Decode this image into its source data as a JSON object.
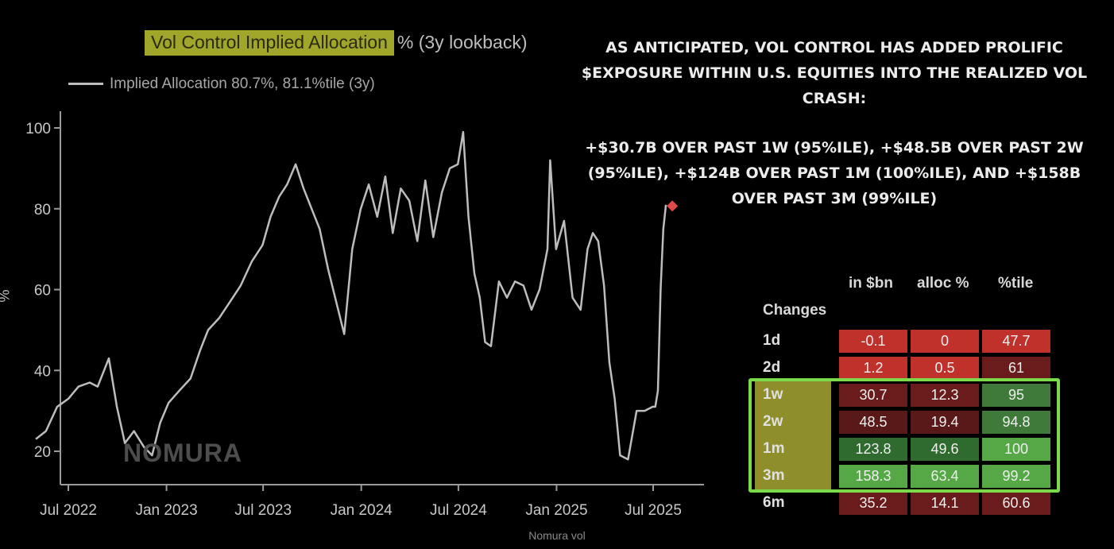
{
  "chart_data": {
    "type": "line",
    "title_highlight": "Vol Control Implied Allocation",
    "title_rest": "% (3y lookback)",
    "legend": "Implied Allocation 80.7%, 81.1%tile (3y)",
    "ylabel": "%",
    "ylim": [
      15,
      103
    ],
    "yticks": [
      20,
      40,
      60,
      80,
      100
    ],
    "xticks": [
      "Jul 2022",
      "Jan 2023",
      "Jul 2023",
      "Jan 2024",
      "Jul 2024",
      "Jan 2025",
      "Jul 2025"
    ],
    "series": [
      {
        "name": "Implied Allocation",
        "x": [
          "2022-05-01",
          "2022-05-20",
          "2022-06-10",
          "2022-07-01",
          "2022-07-20",
          "2022-08-10",
          "2022-08-25",
          "2022-09-15",
          "2022-09-30",
          "2022-10-15",
          "2022-11-01",
          "2022-11-20",
          "2022-12-05",
          "2022-12-20",
          "2023-01-05",
          "2023-01-25",
          "2023-02-15",
          "2023-03-05",
          "2023-03-20",
          "2023-04-10",
          "2023-04-30",
          "2023-05-20",
          "2023-06-10",
          "2023-06-30",
          "2023-07-15",
          "2023-07-31",
          "2023-08-15",
          "2023-08-31",
          "2023-09-15",
          "2023-09-30",
          "2023-10-15",
          "2023-10-31",
          "2023-11-15",
          "2023-11-30",
          "2023-12-15",
          "2023-12-31",
          "2024-01-15",
          "2024-01-31",
          "2024-02-15",
          "2024-02-29",
          "2024-03-15",
          "2024-03-31",
          "2024-04-15",
          "2024-04-30",
          "2024-05-15",
          "2024-05-31",
          "2024-06-15",
          "2024-06-30",
          "2024-07-10",
          "2024-07-20",
          "2024-07-31",
          "2024-08-10",
          "2024-08-20",
          "2024-08-31",
          "2024-09-15",
          "2024-09-30",
          "2024-10-15",
          "2024-10-31",
          "2024-11-15",
          "2024-11-30",
          "2024-12-15",
          "2024-12-20",
          "2024-12-31",
          "2025-01-15",
          "2025-01-31",
          "2025-02-15",
          "2025-02-28",
          "2025-03-10",
          "2025-03-20",
          "2025-03-31",
          "2025-04-10",
          "2025-04-20",
          "2025-04-30",
          "2025-05-15",
          "2025-05-31",
          "2025-06-15",
          "2025-06-30",
          "2025-07-05",
          "2025-07-10",
          "2025-07-15",
          "2025-07-20",
          "2025-07-25"
        ],
        "values": [
          23,
          25,
          31,
          33,
          36,
          37,
          36,
          43,
          31,
          22,
          25,
          21,
          19,
          27,
          32,
          35,
          38,
          45,
          50,
          53,
          57,
          61,
          67,
          71,
          78,
          83,
          86,
          91,
          85,
          80,
          75,
          65,
          57,
          49,
          70,
          80,
          86,
          78,
          88,
          74,
          85,
          82,
          72,
          87,
          73,
          84,
          90,
          91,
          99,
          78,
          64,
          58,
          47,
          46,
          62,
          58,
          62,
          61,
          55,
          60,
          70,
          92,
          70,
          77,
          58,
          55,
          70,
          74,
          72,
          61,
          42,
          33,
          19,
          18,
          30,
          30,
          31,
          31,
          35,
          60,
          75,
          81
        ]
      }
    ],
    "last_marker": {
      "x": "2025-07-25",
      "value": 80.7,
      "color": "#e04a4a"
    }
  },
  "colors": {
    "background": "#000000",
    "line": "#bdbdbd",
    "title_highlight": "#9fa62a",
    "box_outline": "#7bd94a",
    "row_label_highlight": "#8e8e2a"
  },
  "annotation": {
    "headline": "AS ANTICIPATED, VOL CONTROL HAS ADDED PROLIFIC $EXPOSURE WITHIN U.S. EQUITIES INTO THE REALIZED VOL CRASH:",
    "detail": "+$30.7B OVER PAST 1W (95%ILE), +$48.5B OVER PAST 2W (95%ILE), +$124B OVER PAST 1M (100%ILE), AND +$158B OVER PAST 3M (99%ILE)"
  },
  "watermark": "NOMURA",
  "footer": "Nomura vol",
  "table": {
    "title": "Changes",
    "columns": [
      "in $bn",
      "alloc %",
      "%tile"
    ],
    "rows": [
      {
        "label": "1d",
        "cells": [
          "-0.1",
          "0",
          "47.7"
        ],
        "colors": [
          "#c0312b",
          "#c0312b",
          "#c0312b"
        ]
      },
      {
        "label": "2d",
        "cells": [
          "1.2",
          "0.5",
          "61"
        ],
        "colors": [
          "#c0312b",
          "#c0312b",
          "#6a1c1c"
        ]
      },
      {
        "label": "1w",
        "cells": [
          "30.7",
          "12.3",
          "95"
        ],
        "colors": [
          "#6a1c1c",
          "#6a1c1c",
          "#3f7a3a"
        ]
      },
      {
        "label": "2w",
        "cells": [
          "48.5",
          "19.4",
          "94.8"
        ],
        "colors": [
          "#5a1919",
          "#5a1919",
          "#3f7a3a"
        ]
      },
      {
        "label": "1m",
        "cells": [
          "123.8",
          "49.6",
          "100"
        ],
        "colors": [
          "#2f6a2f",
          "#2f6a2f",
          "#55a845"
        ]
      },
      {
        "label": "3m",
        "cells": [
          "158.3",
          "63.4",
          "99.2"
        ],
        "colors": [
          "#55a845",
          "#55a845",
          "#55a845"
        ]
      },
      {
        "label": "6m",
        "cells": [
          "35.2",
          "14.1",
          "60.6"
        ],
        "colors": [
          "#6a1c1c",
          "#6a1c1c",
          "#6a1c1c"
        ]
      }
    ]
  }
}
